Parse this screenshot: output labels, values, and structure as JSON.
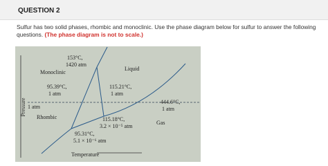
{
  "header": {
    "title": "QUESTION 2"
  },
  "question": {
    "text": "Sulfur has two solid phases, rhombic and monoclinic. Use the phase diagram below for sulfur to answer the following questions.",
    "note": "(The phase diagram is not to scale.)"
  },
  "diagram": {
    "y_axis_label": "Pressure",
    "x_axis_label": "Temperature",
    "regions": [
      "Monoclinic",
      "Liquid",
      "Rhombic",
      "Gas"
    ],
    "points": [
      {
        "temperature": "153°C,",
        "pressure": "1420 atm"
      },
      {
        "temperature": "95.39°C,",
        "pressure": "1 atm"
      },
      {
        "temperature": "115.21°C,",
        "pressure": "1 atm"
      },
      {
        "temperature": "444.6°C,",
        "pressure": "1 atm"
      },
      {
        "temperature": "115.18°C,",
        "pressure": "3.2 × 10⁻⁵ atm"
      },
      {
        "temperature": "95.31°C,",
        "pressure": "5.1 × 10⁻⁶ atm"
      }
    ],
    "one_atm_label": "1 atm"
  }
}
